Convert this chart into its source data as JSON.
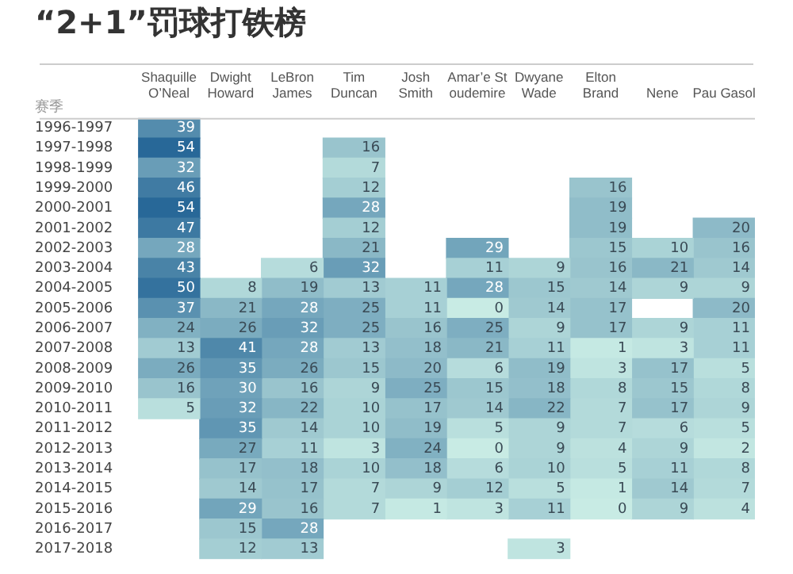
{
  "chart_data": {
    "type": "heatmap",
    "data_labels": true,
    "title": "“2+1”罚球打铁榜",
    "ylabel": "赛季",
    "categories": [
      "Shaquille O’Neal",
      "Dwight Howard",
      "LeBron James",
      "Tim Duncan",
      "Josh Smith",
      "Amar’e Stoudemire",
      "Dwyane Wade",
      "Elton Brand",
      "Nene",
      "Pau Gasol"
    ],
    "y_categories": [
      "1996-1997",
      "1997-1998",
      "1998-1999",
      "1999-2000",
      "2000-2001",
      "2001-2002",
      "2002-2003",
      "2003-2004",
      "2004-2005",
      "2005-2006",
      "2006-2007",
      "2007-2008",
      "2008-2009",
      "2009-2010",
      "2010-2011",
      "2011-2012",
      "2012-2013",
      "2013-2014",
      "2014-2015",
      "2015-2016",
      "2016-2017",
      "2017-2018"
    ],
    "cells": [
      [
        39,
        null,
        null,
        null,
        null,
        null,
        null,
        null,
        null,
        null
      ],
      [
        54,
        null,
        null,
        16,
        null,
        null,
        null,
        null,
        null,
        null
      ],
      [
        32,
        null,
        null,
        7,
        null,
        null,
        null,
        null,
        null,
        null
      ],
      [
        46,
        null,
        null,
        12,
        null,
        null,
        null,
        16,
        null,
        null
      ],
      [
        54,
        null,
        null,
        28,
        null,
        null,
        null,
        19,
        null,
        null
      ],
      [
        47,
        null,
        null,
        12,
        null,
        null,
        null,
        19,
        null,
        20
      ],
      [
        28,
        null,
        null,
        21,
        null,
        29,
        null,
        15,
        10,
        16
      ],
      [
        43,
        null,
        6,
        32,
        null,
        11,
        9,
        16,
        21,
        14
      ],
      [
        50,
        8,
        19,
        13,
        11,
        28,
        15,
        14,
        9,
        9
      ],
      [
        37,
        21,
        28,
        25,
        11,
        0,
        14,
        17,
        null,
        20
      ],
      [
        24,
        26,
        32,
        25,
        16,
        25,
        9,
        17,
        9,
        11
      ],
      [
        13,
        41,
        28,
        13,
        18,
        21,
        11,
        1,
        3,
        11
      ],
      [
        26,
        35,
        26,
        15,
        20,
        6,
        19,
        3,
        17,
        5
      ],
      [
        16,
        30,
        16,
        9,
        25,
        15,
        18,
        8,
        15,
        8
      ],
      [
        5,
        32,
        22,
        10,
        17,
        14,
        22,
        7,
        17,
        9
      ],
      [
        null,
        35,
        14,
        10,
        19,
        5,
        9,
        7,
        6,
        5
      ],
      [
        null,
        27,
        11,
        3,
        24,
        0,
        9,
        4,
        9,
        2
      ],
      [
        null,
        17,
        18,
        10,
        18,
        6,
        10,
        5,
        11,
        8
      ],
      [
        null,
        14,
        17,
        7,
        9,
        12,
        5,
        1,
        14,
        7
      ],
      [
        null,
        29,
        16,
        7,
        1,
        3,
        11,
        0,
        9,
        4
      ],
      [
        null,
        15,
        28,
        null,
        null,
        null,
        null,
        null,
        null,
        null
      ],
      [
        null,
        12,
        13,
        null,
        null,
        null,
        3,
        null,
        null,
        null
      ]
    ]
  }
}
